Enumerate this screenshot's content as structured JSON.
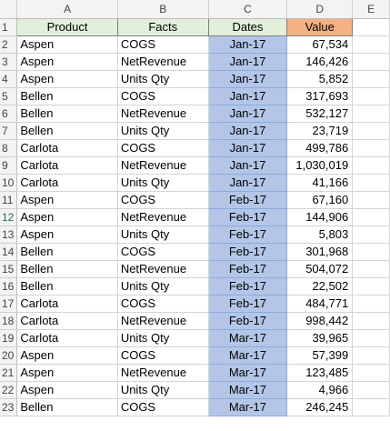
{
  "columns": [
    "A",
    "B",
    "C",
    "D",
    "E"
  ],
  "header_row": {
    "row": "1",
    "product": "Product",
    "facts": "Facts",
    "dates": "Dates",
    "value": "Value"
  },
  "rows": [
    {
      "row": "2",
      "product": "Aspen",
      "facts": "COGS",
      "date": "Jan-17",
      "value": "67,534"
    },
    {
      "row": "3",
      "product": "Aspen",
      "facts": "NetRevenue",
      "date": "Jan-17",
      "value": "146,426"
    },
    {
      "row": "4",
      "product": "Aspen",
      "facts": "Units Qty",
      "date": "Jan-17",
      "value": "5,852"
    },
    {
      "row": "5",
      "product": "Bellen",
      "facts": "COGS",
      "date": "Jan-17",
      "value": "317,693"
    },
    {
      "row": "6",
      "product": "Bellen",
      "facts": "NetRevenue",
      "date": "Jan-17",
      "value": "532,127"
    },
    {
      "row": "7",
      "product": "Bellen",
      "facts": "Units Qty",
      "date": "Jan-17",
      "value": "23,719"
    },
    {
      "row": "8",
      "product": "Carlota",
      "facts": "COGS",
      "date": "Jan-17",
      "value": "499,786"
    },
    {
      "row": "9",
      "product": "Carlota",
      "facts": "NetRevenue",
      "date": "Jan-17",
      "value": "1,030,019"
    },
    {
      "row": "10",
      "product": "Carlota",
      "facts": "Units Qty",
      "date": "Jan-17",
      "value": "41,166"
    },
    {
      "row": "11",
      "product": "Aspen",
      "facts": "COGS",
      "date": "Feb-17",
      "value": "67,160"
    },
    {
      "row": "12",
      "product": "Aspen",
      "facts": "NetRevenue",
      "date": "Feb-17",
      "value": "144,906"
    },
    {
      "row": "13",
      "product": "Aspen",
      "facts": "Units Qty",
      "date": "Feb-17",
      "value": "5,803"
    },
    {
      "row": "14",
      "product": "Bellen",
      "facts": "COGS",
      "date": "Feb-17",
      "value": "301,968"
    },
    {
      "row": "15",
      "product": "Bellen",
      "facts": "NetRevenue",
      "date": "Feb-17",
      "value": "504,072"
    },
    {
      "row": "16",
      "product": "Bellen",
      "facts": "Units Qty",
      "date": "Feb-17",
      "value": "22,502"
    },
    {
      "row": "17",
      "product": "Carlota",
      "facts": "COGS",
      "date": "Feb-17",
      "value": "484,771"
    },
    {
      "row": "18",
      "product": "Carlota",
      "facts": "NetRevenue",
      "date": "Feb-17",
      "value": "998,442"
    },
    {
      "row": "19",
      "product": "Carlota",
      "facts": "Units Qty",
      "date": "Mar-17",
      "value": "39,965"
    },
    {
      "row": "20",
      "product": "Aspen",
      "facts": "COGS",
      "date": "Mar-17",
      "value": "57,399"
    },
    {
      "row": "21",
      "product": "Aspen",
      "facts": "NetRevenue",
      "date": "Mar-17",
      "value": "123,485"
    },
    {
      "row": "22",
      "product": "Aspen",
      "facts": "Units Qty",
      "date": "Mar-17",
      "value": "4,966"
    },
    {
      "row": "23",
      "product": "Bellen",
      "facts": "COGS",
      "date": "Mar-17",
      "value": "246,245"
    }
  ],
  "colors": {
    "header_green": "#e2efda",
    "header_orange": "#f4b183",
    "date_blue": "#b4c6e7"
  }
}
